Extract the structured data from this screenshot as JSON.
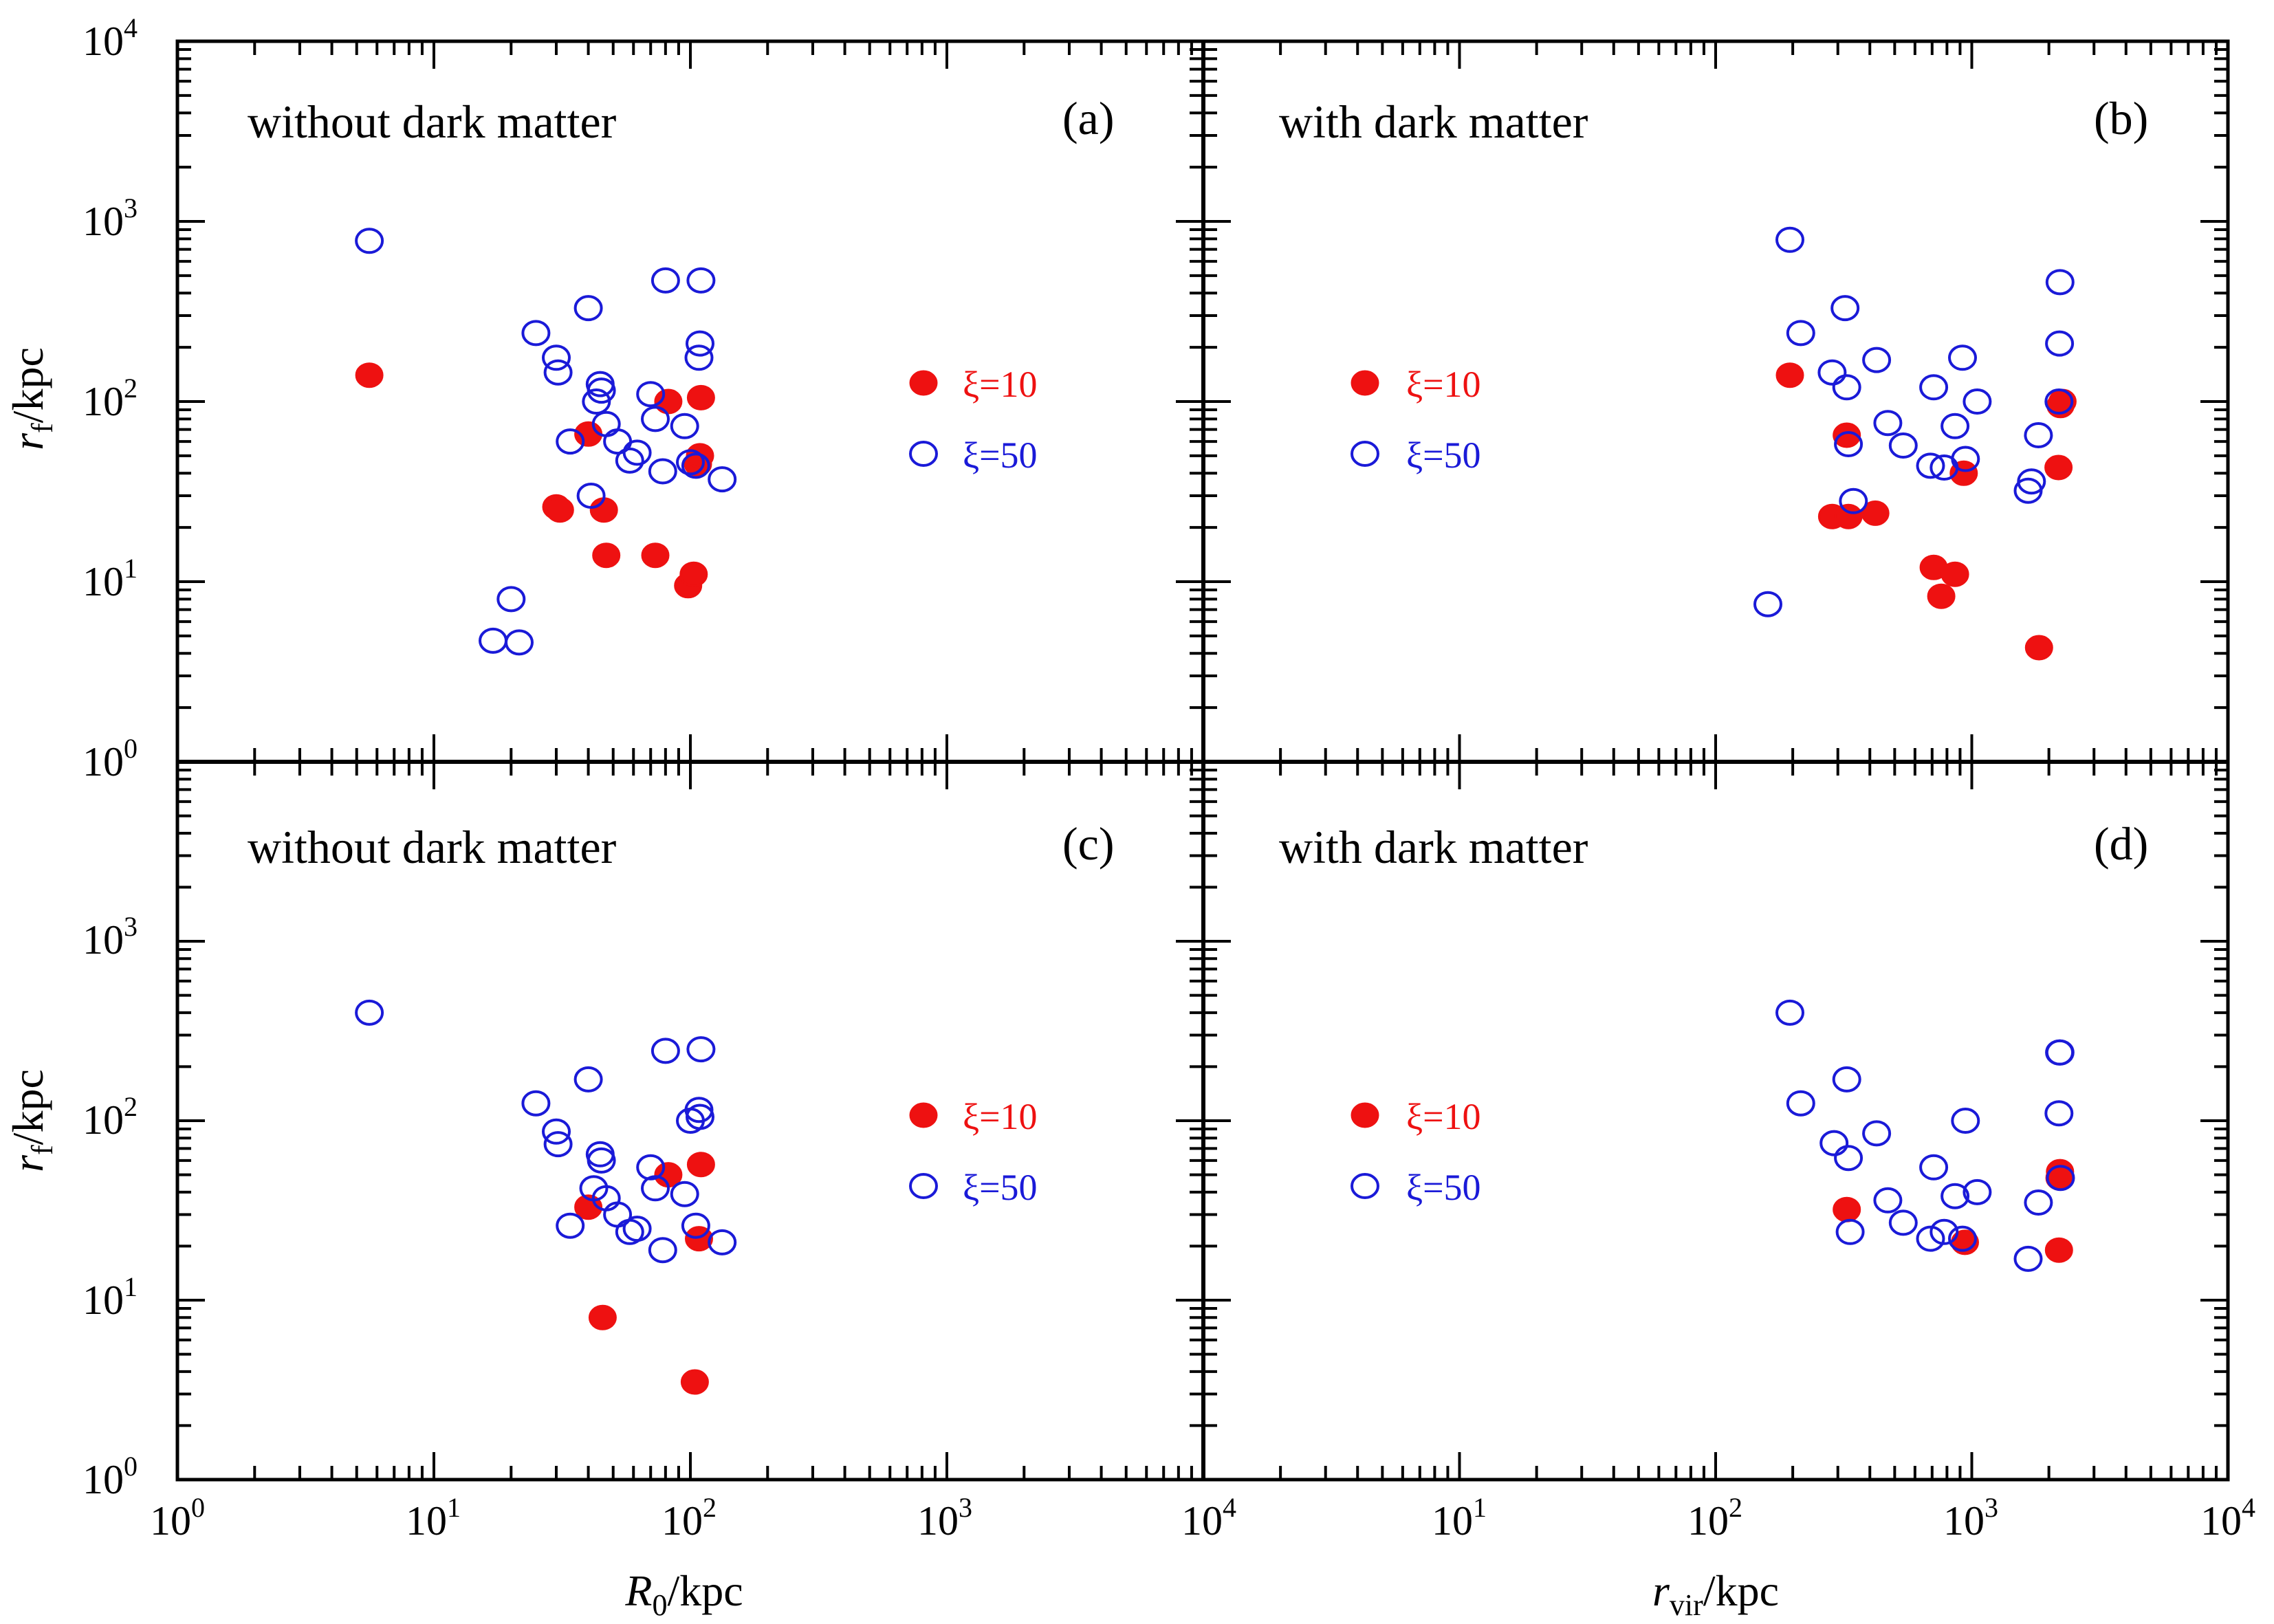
{
  "colors": {
    "xi10": "#ee1111",
    "xi50": "#1a1ad8",
    "axis": "#000000"
  },
  "axes_text": {
    "x_left_label_main": "R",
    "x_left_label_sub": "0",
    "x_left_label_unit": "/kpc",
    "x_right_label_main": "r",
    "x_right_label_sub": "vir",
    "x_right_label_unit": "/kpc",
    "y_label_main": "r",
    "y_label_sub": "f",
    "y_label_unit": "/kpc",
    "tick_base": "10",
    "y_tick_exponents": [
      "0",
      "1",
      "2",
      "3",
      "4"
    ],
    "y_tick_exponents_lower": [
      "0",
      "1",
      "2",
      "3"
    ],
    "x_tick_exponents_left": [
      "0",
      "1",
      "2",
      "3"
    ],
    "x_tick_exponents_right": [
      "4",
      "1",
      "2",
      "3",
      "4"
    ]
  },
  "chart_data": [
    {
      "type": "scatter",
      "panel": "(a)",
      "title": "without dark matter",
      "xlabel": "R0/kpc",
      "ylabel": "rf/kpc",
      "xscale": "log",
      "yscale": "log",
      "xlim": [
        1,
        10000
      ],
      "ylim": [
        1,
        10000
      ],
      "legend": {
        "position": "right",
        "labels": [
          "ξ=10",
          "ξ=50"
        ]
      },
      "series": [
        {
          "name": "ξ=10",
          "marker": "filled",
          "x": [
            5.6,
            30,
            31,
            40,
            46,
            47,
            73,
            82,
            98,
            103,
            107,
            109,
            110
          ],
          "y": [
            140,
            26,
            25,
            66,
            25,
            14,
            14,
            100,
            9.5,
            11,
            45,
            50,
            105
          ]
        },
        {
          "name": "ξ=50",
          "marker": "open",
          "x": [
            5.6,
            17,
            20,
            21.5,
            25,
            30,
            30.5,
            34,
            40,
            41,
            43,
            44.5,
            45,
            47,
            52,
            58,
            62,
            70,
            73,
            78,
            80,
            95,
            100,
            105,
            108,
            109,
            110,
            133
          ],
          "y": [
            780,
            4.7,
            8,
            4.6,
            240,
            175,
            145,
            60,
            330,
            30,
            100,
            125,
            115,
            75,
            60,
            47,
            52,
            110,
            80,
            41,
            470,
            73,
            46,
            44,
            175,
            210,
            470,
            37
          ]
        }
      ]
    },
    {
      "type": "scatter",
      "panel": "(b)",
      "title": "with dark matter",
      "xlabel": "rvir/kpc",
      "ylabel": "rf/kpc",
      "xscale": "log",
      "yscale": "log",
      "xlim": [
        1,
        10000
      ],
      "ylim": [
        1,
        10000
      ],
      "legend": {
        "position": "left",
        "labels": [
          "ξ=10",
          "ξ=50"
        ]
      },
      "series": [
        {
          "name": "ξ=10",
          "marker": "filled",
          "x": [
            195,
            285,
            325,
            330,
            420,
            710,
            760,
            860,
            930,
            1830,
            2180,
            2220,
            2260
          ],
          "y": [
            140,
            23,
            65,
            23,
            24,
            12,
            8.3,
            11,
            40,
            4.3,
            43,
            95,
            100
          ]
        },
        {
          "name": "ξ=50",
          "marker": "open",
          "x": [
            160,
            195,
            215,
            285,
            320,
            325,
            330,
            345,
            425,
            470,
            540,
            690,
            710,
            780,
            860,
            920,
            945,
            1050,
            1660,
            1710,
            1820,
            2190,
            2200,
            2210
          ],
          "y": [
            7.5,
            790,
            240,
            145,
            330,
            120,
            58,
            28,
            170,
            76,
            57,
            44,
            120,
            43,
            73,
            175,
            48,
            100,
            32,
            36,
            65,
            100,
            210,
            460
          ]
        }
      ]
    },
    {
      "type": "scatter",
      "panel": "(c)",
      "title": "without dark matter",
      "xlabel": "R0/kpc",
      "ylabel": "rf/kpc",
      "xscale": "log",
      "yscale": "log",
      "xlim": [
        1,
        10000
      ],
      "ylim": [
        1,
        10000
      ],
      "legend": {
        "position": "right",
        "labels": [
          "ξ=10",
          "ξ=50"
        ]
      },
      "series": [
        {
          "name": "ξ=10",
          "marker": "filled",
          "x": [
            40,
            45.5,
            82,
            104,
            108,
            110
          ],
          "y": [
            33,
            8,
            50,
            3.5,
            22,
            57
          ]
        },
        {
          "name": "ξ=50",
          "marker": "open",
          "x": [
            5.6,
            25,
            30,
            30.5,
            34,
            40,
            42,
            44.5,
            45,
            47,
            52,
            58,
            62,
            70,
            73,
            78,
            80,
            95,
            100,
            105,
            108,
            109,
            110,
            133
          ],
          "y": [
            400,
            125,
            87,
            74,
            26,
            170,
            42,
            65,
            60,
            37,
            30,
            24,
            25,
            55,
            42,
            19,
            245,
            39,
            100,
            26,
            115,
            105,
            250,
            21
          ]
        }
      ]
    },
    {
      "type": "scatter",
      "panel": "(d)",
      "title": "with dark matter",
      "xlabel": "rvir/kpc",
      "ylabel": "rf/kpc",
      "xscale": "log",
      "yscale": "log",
      "xlim": [
        1,
        10000
      ],
      "ylim": [
        1,
        10000
      ],
      "legend": {
        "position": "left",
        "labels": [
          "ξ=10",
          "ξ=50"
        ]
      },
      "series": [
        {
          "name": "ξ=10",
          "marker": "filled",
          "x": [
            325,
            940,
            2190,
            2200,
            2210
          ],
          "y": [
            32,
            21,
            19,
            48,
            52
          ]
        },
        {
          "name": "ξ=50",
          "marker": "open",
          "x": [
            195,
            215,
            290,
            325,
            330,
            335,
            425,
            470,
            540,
            690,
            710,
            780,
            860,
            920,
            945,
            1050,
            1660,
            1820,
            2190,
            2200,
            2210,
            2220
          ],
          "y": [
            400,
            125,
            75,
            170,
            62,
            24,
            85,
            36,
            27,
            22,
            55,
            24,
            38,
            22,
            100,
            40,
            17,
            35,
            110,
            240,
            240,
            48
          ]
        }
      ]
    }
  ]
}
